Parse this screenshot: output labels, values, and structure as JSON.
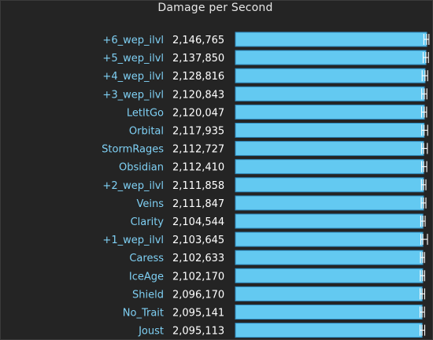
{
  "chart_data": {
    "type": "bar",
    "orientation": "horizontal",
    "title": "Damage per Second",
    "xlabel": "",
    "ylabel": "",
    "xlim": [
      0,
      2200000
    ],
    "grid": false,
    "categories": [
      "+6_wep_ilvl",
      "+5_wep_ilvl",
      "+4_wep_ilvl",
      "+3_wep_ilvl",
      "LetItGo",
      "Orbital",
      "StormRages",
      "Obsidian",
      "+2_wep_ilvl",
      "Veins",
      "Clarity",
      "+1_wep_ilvl",
      "Caress",
      "IceAge",
      "Shield",
      "No_Trait",
      "Joust"
    ],
    "values": [
      2146765,
      2137850,
      2128816,
      2120843,
      2120047,
      2117935,
      2112727,
      2112410,
      2111858,
      2111847,
      2104544,
      2103645,
      2102633,
      2102170,
      2096170,
      2095141,
      2095113
    ],
    "value_labels": [
      "2,146,765",
      "2,137,850",
      "2,128,816",
      "2,120,843",
      "2,120,047",
      "2,117,935",
      "2,112,727",
      "2,112,410",
      "2,111,858",
      "2,111,847",
      "2,104,544",
      "2,103,645",
      "2,102,633",
      "2,102,170",
      "2,096,170",
      "2,095,141",
      "2,095,113"
    ],
    "error_low": [
      2115000,
      2107000,
      2096000,
      2091000,
      2090000,
      2091000,
      2089000,
      2090000,
      2088000,
      2086000,
      2080000,
      2081000,
      2077000,
      2075000,
      2073000,
      2072000,
      2072000
    ],
    "error_high": [
      2172000,
      2166000,
      2158000,
      2149000,
      2146000,
      2158000,
      2154000,
      2148000,
      2138000,
      2138000,
      2129000,
      2156000,
      2123000,
      2124000,
      2124000,
      2122000,
      2125000
    ],
    "colors": {
      "bar": "#63c9f1",
      "bar_edge": "#2f8bbf",
      "category_label": "#7fd0f4",
      "value_label": "#ffffff",
      "error_bar": "#ffffff",
      "background": "#242424"
    }
  }
}
